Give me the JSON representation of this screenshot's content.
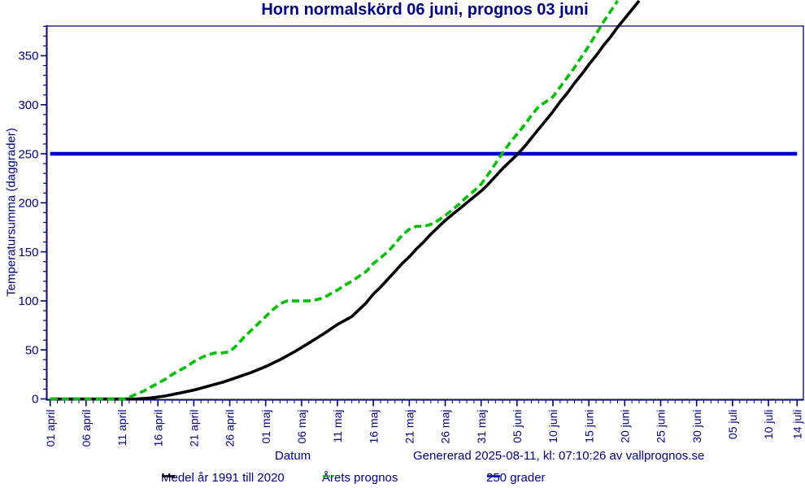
{
  "title": "Horn normalskörd 06 juni, prognos 03 juni",
  "axes": {
    "x_label": "Datum",
    "y_label": "Temperatursumma (daggrader)"
  },
  "footer": {
    "generated": "Genererad 2025-08-11, kl: 07:10:26 av vallprognos.se"
  },
  "colors": {
    "text_navy": "#000080",
    "axis_navy": "#000080",
    "series_mean": "#000000",
    "series_forecast": "#00BE00",
    "series_threshold": "#0000C8",
    "background": "#FFFFFF"
  },
  "legend": [
    {
      "label": "Medel år 1991 till 2020",
      "swatch": "black-solid-line",
      "series_index": 1
    },
    {
      "label": "Årets prognos",
      "swatch": "green-dash-dot-line",
      "series_index": 2
    },
    {
      "label": "250 grader",
      "swatch": "blue-solid-line",
      "series_index": 0
    }
  ],
  "chart_data": {
    "type": "line",
    "title": "Horn normalskörd 06 juni, prognos 03 juni",
    "xlabel": "Datum",
    "ylabel": "Temperatursumma (daggrader)",
    "x_unit": "days since 01 april",
    "ylim": [
      0,
      380
    ],
    "xlim_days": [
      0,
      104.9
    ],
    "grid": false,
    "legend_position": "bottom",
    "y_ticks": [
      0,
      50,
      100,
      150,
      200,
      250,
      300,
      350
    ],
    "y_minor_step": 10,
    "x_minor_step_days": 1,
    "x_ticks": [
      {
        "label": "01 april",
        "day": 0
      },
      {
        "label": "06 april",
        "day": 5
      },
      {
        "label": "11 april",
        "day": 10
      },
      {
        "label": "16 april",
        "day": 15
      },
      {
        "label": "21 april",
        "day": 20
      },
      {
        "label": "26 april",
        "day": 25
      },
      {
        "label": "01 maj",
        "day": 30
      },
      {
        "label": "06 maj",
        "day": 35
      },
      {
        "label": "11 maj",
        "day": 40
      },
      {
        "label": "16 maj",
        "day": 45
      },
      {
        "label": "21 maj",
        "day": 50
      },
      {
        "label": "26 maj",
        "day": 55
      },
      {
        "label": "31 maj",
        "day": 60
      },
      {
        "label": "05 juni",
        "day": 65
      },
      {
        "label": "10 juni",
        "day": 70
      },
      {
        "label": "15 juni",
        "day": 75
      },
      {
        "label": "20 juni",
        "day": 80
      },
      {
        "label": "25 juni",
        "day": 85
      },
      {
        "label": "30 juni",
        "day": 90
      },
      {
        "label": "05 juli",
        "day": 95
      },
      {
        "label": "10 juli",
        "day": 100
      },
      {
        "label": "14 juli",
        "day": 104
      }
    ],
    "series": [
      {
        "name": "250 grader",
        "role": "threshold",
        "color": "#0000C8",
        "style": "solid",
        "width": 4.6,
        "z": 0,
        "points": [
          [
            0,
            250
          ],
          [
            104,
            250
          ]
        ]
      },
      {
        "name": "Medel år 1991 till 2020",
        "role": "mean",
        "color": "#000000",
        "style": "solid",
        "width": 3.6,
        "z": 1,
        "points": [
          [
            0,
            0
          ],
          [
            4,
            0
          ],
          [
            8,
            0
          ],
          [
            12,
            0
          ],
          [
            14,
            1
          ],
          [
            16,
            3
          ],
          [
            18,
            6
          ],
          [
            20,
            9
          ],
          [
            22,
            13
          ],
          [
            24,
            17
          ],
          [
            26,
            22
          ],
          [
            28,
            27
          ],
          [
            30,
            33
          ],
          [
            32,
            40
          ],
          [
            34,
            48
          ],
          [
            36,
            57
          ],
          [
            38,
            66
          ],
          [
            40,
            76
          ],
          [
            42,
            84
          ],
          [
            44,
            98
          ],
          [
            45,
            107
          ],
          [
            46,
            114
          ],
          [
            47,
            122
          ],
          [
            48,
            130
          ],
          [
            49,
            138
          ],
          [
            50,
            145
          ],
          [
            51,
            153
          ],
          [
            52,
            160
          ],
          [
            53,
            168
          ],
          [
            54,
            175
          ],
          [
            55,
            182
          ],
          [
            56,
            188
          ],
          [
            57,
            194
          ],
          [
            58,
            200
          ],
          [
            59,
            206
          ],
          [
            60,
            212
          ],
          [
            61,
            219
          ],
          [
            62,
            227
          ],
          [
            63,
            235
          ],
          [
            64,
            242
          ],
          [
            65,
            249
          ],
          [
            66,
            257
          ],
          [
            67,
            266
          ],
          [
            68,
            275
          ],
          [
            69,
            284
          ],
          [
            70,
            293
          ],
          [
            71,
            303
          ],
          [
            72,
            312
          ],
          [
            73,
            322
          ],
          [
            74,
            331
          ],
          [
            75,
            341
          ],
          [
            76,
            350
          ],
          [
            77,
            360
          ],
          [
            78,
            369
          ],
          [
            79,
            379
          ],
          [
            80,
            388
          ],
          [
            81,
            397
          ],
          [
            82,
            406
          ]
        ]
      },
      {
        "name": "Årets prognos",
        "role": "forecast",
        "color": "#00BE00",
        "style": "dashed",
        "dash": "9 5",
        "legend_dash": "5 2 2 2 2 2",
        "width": 3.6,
        "z": 2,
        "points": [
          [
            0,
            0
          ],
          [
            2,
            0
          ],
          [
            4,
            0
          ],
          [
            6,
            0
          ],
          [
            8,
            0
          ],
          [
            10,
            0
          ],
          [
            10.5,
            0
          ],
          [
            12,
            5
          ],
          [
            13,
            8
          ],
          [
            14,
            12
          ],
          [
            15,
            16
          ],
          [
            16,
            20
          ],
          [
            17,
            25
          ],
          [
            18,
            29
          ],
          [
            19,
            33
          ],
          [
            20,
            38
          ],
          [
            21,
            42
          ],
          [
            22,
            45
          ],
          [
            23,
            47
          ],
          [
            24,
            47
          ],
          [
            25,
            48
          ],
          [
            26,
            55
          ],
          [
            27,
            63
          ],
          [
            28,
            70
          ],
          [
            29,
            77
          ],
          [
            30,
            84
          ],
          [
            31,
            91
          ],
          [
            32,
            97
          ],
          [
            33,
            100
          ],
          [
            34,
            100
          ],
          [
            35,
            100
          ],
          [
            36,
            100
          ],
          [
            37,
            101
          ],
          [
            38,
            103
          ],
          [
            39,
            107
          ],
          [
            40,
            111
          ],
          [
            41,
            116
          ],
          [
            42,
            120
          ],
          [
            43,
            125
          ],
          [
            44,
            130
          ],
          [
            45,
            138
          ],
          [
            46,
            144
          ],
          [
            47,
            150
          ],
          [
            48,
            158
          ],
          [
            49,
            167
          ],
          [
            50,
            173
          ],
          [
            51,
            176
          ],
          [
            52,
            176
          ],
          [
            53,
            178
          ],
          [
            54,
            182
          ],
          [
            55,
            187
          ],
          [
            56,
            193
          ],
          [
            57,
            199
          ],
          [
            58,
            206
          ],
          [
            59,
            212
          ],
          [
            60,
            219
          ],
          [
            61,
            229
          ],
          [
            62,
            240
          ],
          [
            63,
            251
          ],
          [
            64,
            261
          ],
          [
            65,
            270
          ],
          [
            66,
            279
          ],
          [
            67,
            289
          ],
          [
            68,
            298
          ],
          [
            69,
            303
          ],
          [
            70,
            308
          ],
          [
            71,
            318
          ],
          [
            72,
            328
          ],
          [
            73,
            338
          ],
          [
            74,
            349
          ],
          [
            75,
            360
          ],
          [
            76,
            372
          ],
          [
            77,
            384
          ],
          [
            78,
            395
          ],
          [
            79,
            406
          ]
        ]
      }
    ]
  }
}
